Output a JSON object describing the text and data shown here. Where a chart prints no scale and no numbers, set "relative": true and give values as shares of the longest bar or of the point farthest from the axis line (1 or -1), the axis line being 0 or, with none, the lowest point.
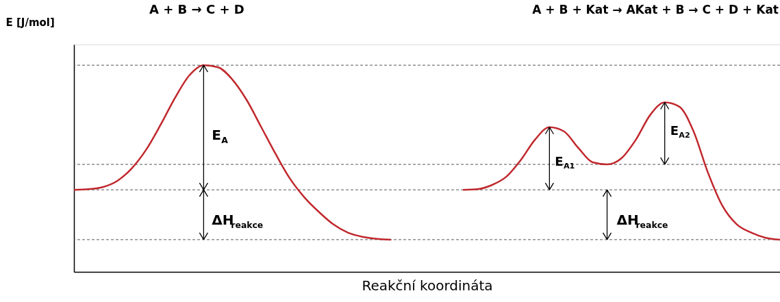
{
  "chart_data": {
    "type": "line",
    "relative": true,
    "xlabel": "Reakční koordináta",
    "ylabel": "E [J/mol]",
    "categories": [
      null,
      null,
      null,
      null,
      null,
      null,
      null,
      null,
      null,
      null,
      null,
      null,
      null,
      null,
      null,
      null,
      null,
      null,
      null,
      null,
      null,
      null,
      null,
      null,
      null,
      null,
      null,
      null,
      null,
      null,
      null,
      null,
      null,
      null,
      null,
      null,
      null,
      null,
      null,
      null,
      null,
      null,
      null,
      null,
      null,
      null,
      null,
      null,
      null,
      null
    ],
    "series": [
      {
        "color": "#c0282d",
        "values": [
          0.397,
          0.4,
          0.41,
          0.44,
          0.5,
          0.59,
          0.71,
          0.84,
          0.95,
          1.0,
          0.99,
          0.93,
          0.83,
          0.7,
          0.57,
          0.45,
          0.36,
          0.29,
          0.23,
          0.19,
          0.17,
          0.16,
          0.156,
          null,
          null,
          null,
          null,
          null,
          null,
          null,
          null,
          null,
          null,
          null,
          null,
          null,
          null,
          null,
          null,
          null,
          null,
          null,
          null,
          null,
          null,
          null,
          null,
          null,
          null,
          null
        ]
      },
      {
        "color": "#c0282d",
        "values": [
          null,
          null,
          null,
          null,
          null,
          null,
          null,
          null,
          null,
          null,
          null,
          null,
          null,
          null,
          null,
          null,
          null,
          null,
          null,
          null,
          null,
          null,
          null,
          null,
          null,
          null,
          null,
          0.397,
          0.4,
          0.42,
          0.46,
          0.54,
          0.64,
          0.7,
          0.68,
          0.6,
          0.53,
          0.52,
          0.55,
          0.64,
          0.76,
          0.82,
          0.8,
          0.68,
          0.48,
          0.32,
          0.23,
          0.19,
          0.165,
          0.156
        ]
      }
    ],
    "ref_lines": [
      {
        "axis": "y",
        "value": 1.0,
        "color": "#555555",
        "line_style": "dashed"
      },
      {
        "axis": "y",
        "value": 0.397,
        "color": "#555555",
        "line_style": "dashed"
      },
      {
        "axis": "y",
        "value": 0.156,
        "color": "#555555",
        "line_style": "dashed"
      },
      {
        "axis": "y",
        "value": 0.52,
        "color": "#555555",
        "line_style": "dashed"
      }
    ],
    "annotations": [
      "A + B → C + D",
      "A + B + Kat → AKat + B → C + D + Kat",
      "E$_{A}$",
      "ΔH$_{reakce}$",
      "E$_{A1}$",
      "E$_{A2}$",
      "ΔH$_{reakce}$"
    ],
    "grid": false,
    "legend": false,
    "line_style": "solid",
    "marker": "none"
  }
}
